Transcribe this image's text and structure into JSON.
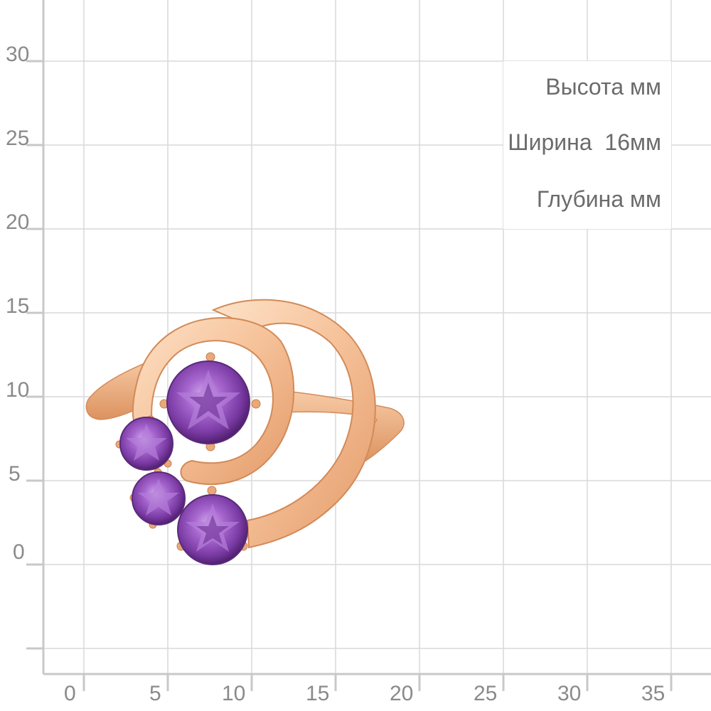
{
  "specs": {
    "height": "Высота мм",
    "width": "Ширина  16мм",
    "depth": "Глубина мм"
  },
  "y_axis_labels": [
    "30",
    "25",
    "20",
    "15",
    "10",
    "5",
    "0"
  ],
  "x_axis_labels": [
    "0",
    "5",
    "10",
    "15",
    "20",
    "25",
    "30",
    "35"
  ],
  "colors": {
    "grid": "#d9d9d9",
    "axis": "#c8c8c8",
    "gold_light": "#fbd7b7",
    "gold_mid": "#f0b58a",
    "gold_dark": "#d98c5c",
    "amethyst_light": "#c69ae0",
    "amethyst_mid": "#8e4fb3",
    "amethyst_dark": "#4e1f6e"
  },
  "product": {
    "type": "ring",
    "metal": "rose-gold",
    "stone": "amethyst",
    "stone_count": 4
  }
}
